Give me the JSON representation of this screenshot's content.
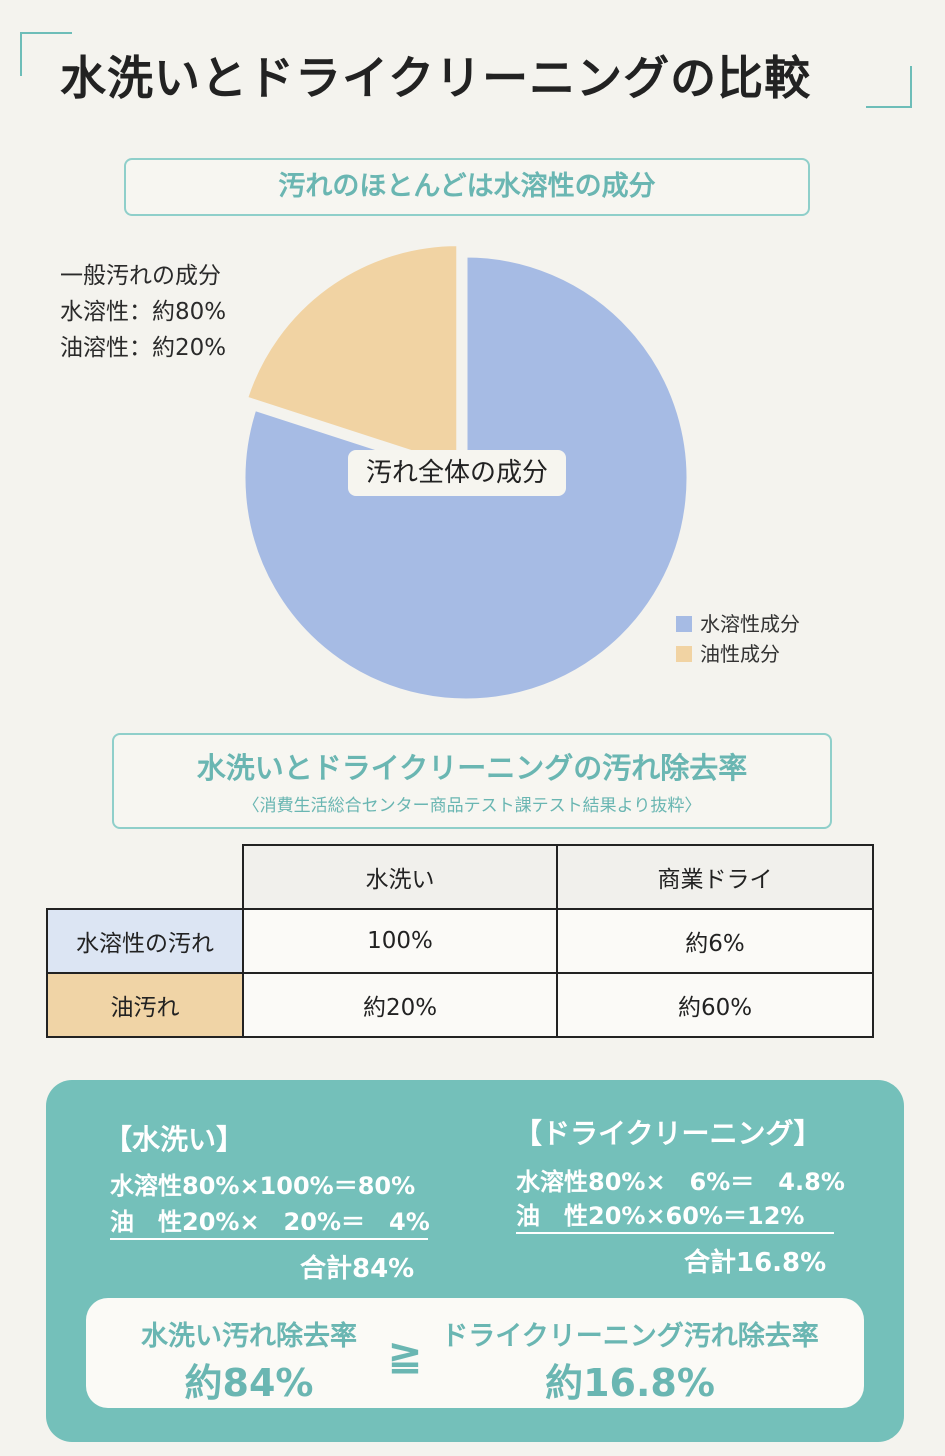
{
  "title": "水洗いとドライクリーニングの比較",
  "section1": {
    "heading": "汚れのほとんどは水溶性の成分"
  },
  "pie_note": [
    "一般汚れの成分",
    "水溶性：約80%",
    "油溶性：約20%"
  ],
  "pie_center_label": "汚れ全体の成分",
  "legend": [
    {
      "label": "水溶性成分",
      "color": "#a6bbe4"
    },
    {
      "label": "油性成分",
      "color": "#f1d3a3"
    }
  ],
  "section2": {
    "heading": "水洗いとドライクリーニングの汚れ除去率",
    "source": "〈消費生活総合センター商品テスト課テスト結果より抜粋〉"
  },
  "table": {
    "columns": [
      "水洗い",
      "商業ドライ"
    ],
    "rows": [
      {
        "label": "水溶性の汚れ",
        "values": [
          "100%",
          "約6%"
        ]
      },
      {
        "label": "油汚れ",
        "values": [
          "約20%",
          "約60%"
        ]
      }
    ]
  },
  "calc_water": {
    "title": "【水洗い】",
    "line1": "水溶性80%×100%＝80%",
    "line2": "油　性20%×　20%＝　4%",
    "total": "合計84%"
  },
  "calc_dry": {
    "title": "【ドライクリーニング】",
    "line1": "水溶性80%×　6%＝　4.8%",
    "line2": "油　性20%×60%＝12%",
    "total": "合計16.8%"
  },
  "result": {
    "left_label": "水洗い汚れ除去率",
    "left_value": "約84%",
    "symbol": "≧",
    "right_label": "ドライクリーニング汚れ除去率",
    "right_value": "約16.8%"
  },
  "colors": {
    "accent": "#74c0ba",
    "water": "#a6bbe4",
    "oil": "#f1d3a3"
  },
  "chart_data": {
    "type": "pie",
    "slices": [
      {
        "label": "水溶性成分",
        "value": 80,
        "color": "#a6bbe4"
      },
      {
        "label": "油性成分",
        "value": 20,
        "color": "#f1d3a3"
      }
    ],
    "title": "汚れ全体の成分",
    "legend_position": "bottom-right",
    "exploded": "油性成分"
  }
}
